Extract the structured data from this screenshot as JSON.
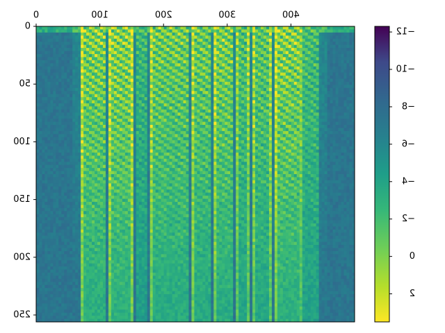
{
  "chart_data": {
    "type": "heatmap",
    "description_note": "",
    "x_ticks": [
      "0",
      "100",
      "200",
      "300",
      "400"
    ],
    "x_tick_values": [
      0,
      100,
      200,
      300,
      400
    ],
    "xlim": [
      0,
      500
    ],
    "y_ticks": [
      "0",
      "50",
      "100",
      "150",
      "200",
      "250"
    ],
    "y_tick_values": [
      0,
      50,
      100,
      150,
      200,
      250
    ],
    "ylim": [
      0,
      256
    ],
    "colorbar": {
      "ticks": [
        "2",
        "0",
        "−2",
        "−4",
        "−6",
        "−8",
        "−10",
        "−12"
      ],
      "tick_values": [
        2,
        0,
        -2,
        -4,
        -6,
        -8,
        -10,
        -12
      ],
      "range": [
        3.5,
        -12.3
      ],
      "colormap": "viridis"
    },
    "mirrored": true,
    "segments": [
      {
        "x_start": 55,
        "x_end": 85,
        "intensity": 0.55
      },
      {
        "x_start": 85,
        "x_end": 125,
        "intensity": 0.8
      },
      {
        "x_start": 130,
        "x_end": 160,
        "intensity": 0.65
      },
      {
        "x_start": 165,
        "x_end": 185,
        "intensity": 0.6
      },
      {
        "x_start": 190,
        "x_end": 220,
        "intensity": 0.75
      },
      {
        "x_start": 225,
        "x_end": 255,
        "intensity": 0.7
      },
      {
        "x_start": 260,
        "x_end": 320,
        "intensity": 0.72
      },
      {
        "x_start": 325,
        "x_end": 345,
        "intensity": 0.5
      },
      {
        "x_start": 350,
        "x_end": 385,
        "intensity": 0.8
      },
      {
        "x_start": 390,
        "x_end": 430,
        "intensity": 0.78
      }
    ],
    "colors": {
      "low": "#440154",
      "mid": "#21918c",
      "high": "#fde725",
      "background": "#3b528b"
    }
  }
}
